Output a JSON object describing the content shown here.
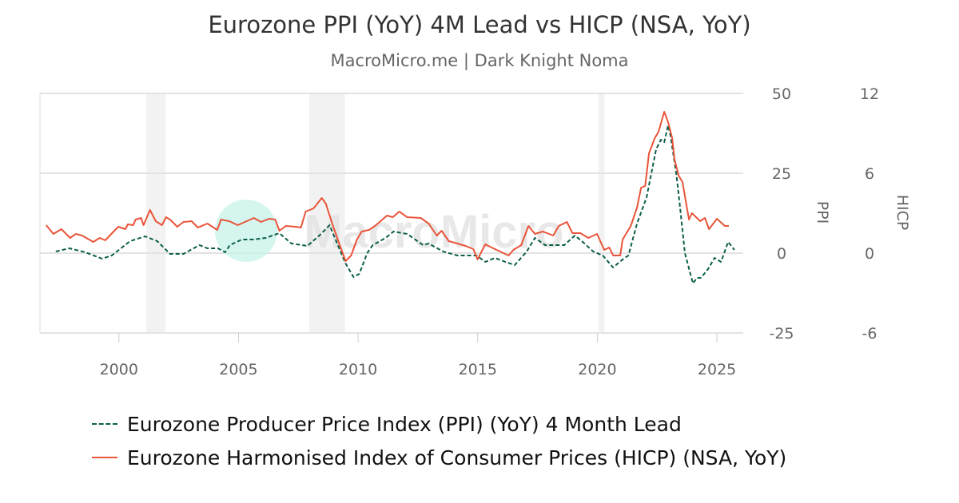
{
  "chart_data": {
    "type": "line",
    "title": "Eurozone PPI (YoY) 4M Lead vs HICP (NSA, YoY)",
    "subtitle": "MacroMicro.me | Dark Knight Noma",
    "watermark": "MacroMicro",
    "x_ticks": [
      "2000",
      "2005",
      "2010",
      "2015",
      "2020",
      "2025"
    ],
    "xlim": [
      1996.7,
      2026.1
    ],
    "y_left": {
      "label": "PPI",
      "ticks": [
        "50",
        "25",
        "0",
        "-25"
      ],
      "range": [
        -25,
        50
      ]
    },
    "y_right": {
      "label": "HICP",
      "ticks": [
        "12",
        "6",
        "0",
        "-6"
      ],
      "range": [
        -6,
        12
      ]
    },
    "grid": true,
    "legend_position": "bottom",
    "shaded_periods": [
      [
        2001.15,
        2001.95
      ],
      [
        2007.95,
        2009.45
      ],
      [
        2020.05,
        2020.3
      ]
    ],
    "series": [
      {
        "name": "Eurozone Producer Price Index (PPI) (YoY) 4 Month Lead",
        "axis": "left",
        "color": "#0b5e4a",
        "style": "dashed",
        "points": [
          [
            1997.36,
            0.5
          ],
          [
            1997.93,
            1.5
          ],
          [
            1998.6,
            0.25
          ],
          [
            1999.3,
            -1.75
          ],
          [
            1999.7,
            -0.75
          ],
          [
            2000.47,
            3.75
          ],
          [
            2001.1,
            5.25
          ],
          [
            2001.6,
            3.75
          ],
          [
            2002.14,
            -0.25
          ],
          [
            2002.7,
            -0.25
          ],
          [
            2003.37,
            2.5
          ],
          [
            2003.7,
            1.5
          ],
          [
            2004.14,
            1.5
          ],
          [
            2004.44,
            0.25
          ],
          [
            2004.64,
            2.5
          ],
          [
            2005.14,
            4.25
          ],
          [
            2005.61,
            4.25
          ],
          [
            2006.14,
            4.75
          ],
          [
            2006.71,
            6.25
          ],
          [
            2007.21,
            3.0
          ],
          [
            2007.88,
            2.25
          ],
          [
            2008.38,
            5.5
          ],
          [
            2008.81,
            8.75
          ],
          [
            2009.15,
            2.5
          ],
          [
            2009.48,
            -3.25
          ],
          [
            2009.81,
            -7.5
          ],
          [
            2010.05,
            -6.5
          ],
          [
            2010.38,
            0
          ],
          [
            2010.61,
            2.5
          ],
          [
            2011.15,
            4.75
          ],
          [
            2011.48,
            6.75
          ],
          [
            2012.05,
            6.0
          ],
          [
            2012.72,
            2.5
          ],
          [
            2012.95,
            3.0
          ],
          [
            2013.55,
            0.5
          ],
          [
            2014.15,
            -0.75
          ],
          [
            2014.62,
            -0.75
          ],
          [
            2014.95,
            -0.75
          ],
          [
            2015.32,
            -2.75
          ],
          [
            2015.72,
            -1.5
          ],
          [
            2016.15,
            -2.75
          ],
          [
            2016.55,
            -3.75
          ],
          [
            2017.05,
            0.5
          ],
          [
            2017.39,
            4.75
          ],
          [
            2017.82,
            2.5
          ],
          [
            2018.29,
            2.5
          ],
          [
            2018.62,
            2.5
          ],
          [
            2019.06,
            5.5
          ],
          [
            2019.39,
            3.5
          ],
          [
            2019.83,
            0.5
          ],
          [
            2020.23,
            -0.75
          ],
          [
            2020.66,
            -4.5
          ],
          [
            2021.06,
            -2.0
          ],
          [
            2021.3,
            -0.75
          ],
          [
            2021.66,
            9.25
          ],
          [
            2022.06,
            17.5
          ],
          [
            2022.46,
            32.5
          ],
          [
            2022.66,
            35.5
          ],
          [
            2022.8,
            34.75
          ],
          [
            2022.96,
            40
          ],
          [
            2023.06,
            36.75
          ],
          [
            2023.3,
            25
          ],
          [
            2023.46,
            14.25
          ],
          [
            2023.66,
            0
          ],
          [
            2024.0,
            -9.5
          ],
          [
            2024.17,
            -7.75
          ],
          [
            2024.33,
            -7.75
          ],
          [
            2024.63,
            -5
          ],
          [
            2024.9,
            -1.5
          ],
          [
            2025.17,
            -2.75
          ],
          [
            2025.47,
            3.5
          ],
          [
            2025.73,
            1.0
          ]
        ]
      },
      {
        "name": "Eurozone Harmonised Index of Consumer Prices (HICP) (NSA, YoY)",
        "axis": "right",
        "color": "#e9553a",
        "style": "solid",
        "points": [
          [
            1996.96,
            2.1
          ],
          [
            1997.26,
            1.44
          ],
          [
            1997.6,
            1.8
          ],
          [
            1997.96,
            1.14
          ],
          [
            1998.2,
            1.44
          ],
          [
            1998.46,
            1.32
          ],
          [
            1998.93,
            0.84
          ],
          [
            1999.2,
            1.14
          ],
          [
            1999.43,
            0.96
          ],
          [
            1999.97,
            1.98
          ],
          [
            2000.27,
            1.8
          ],
          [
            2000.37,
            2.16
          ],
          [
            2000.6,
            2.1
          ],
          [
            2000.7,
            2.52
          ],
          [
            2000.93,
            2.64
          ],
          [
            2001.03,
            2.1
          ],
          [
            2001.3,
            3.24
          ],
          [
            2001.54,
            2.4
          ],
          [
            2001.8,
            2.1
          ],
          [
            2001.97,
            2.7
          ],
          [
            2002.14,
            2.52
          ],
          [
            2002.44,
            1.98
          ],
          [
            2002.7,
            2.34
          ],
          [
            2003.04,
            2.4
          ],
          [
            2003.3,
            1.92
          ],
          [
            2003.7,
            2.22
          ],
          [
            2004.11,
            1.74
          ],
          [
            2004.27,
            2.52
          ],
          [
            2004.61,
            2.4
          ],
          [
            2004.97,
            2.1
          ],
          [
            2005.27,
            2.34
          ],
          [
            2005.64,
            2.64
          ],
          [
            2005.94,
            2.34
          ],
          [
            2006.28,
            2.58
          ],
          [
            2006.54,
            2.52
          ],
          [
            2006.71,
            1.68
          ],
          [
            2006.98,
            2.04
          ],
          [
            2007.38,
            1.98
          ],
          [
            2007.61,
            1.92
          ],
          [
            2007.81,
            3.12
          ],
          [
            2008.14,
            3.36
          ],
          [
            2008.48,
            4.14
          ],
          [
            2008.65,
            3.72
          ],
          [
            2008.95,
            2.04
          ],
          [
            2009.21,
            0.72
          ],
          [
            2009.48,
            -0.6
          ],
          [
            2009.71,
            -0.18
          ],
          [
            2009.95,
            1.02
          ],
          [
            2010.15,
            1.62
          ],
          [
            2010.45,
            1.74
          ],
          [
            2010.71,
            2.04
          ],
          [
            2011.21,
            2.82
          ],
          [
            2011.45,
            2.7
          ],
          [
            2011.72,
            3.12
          ],
          [
            2012.05,
            2.7
          ],
          [
            2012.62,
            2.64
          ],
          [
            2012.95,
            2.22
          ],
          [
            2013.29,
            1.32
          ],
          [
            2013.49,
            1.68
          ],
          [
            2013.79,
            0.9
          ],
          [
            2014.15,
            0.72
          ],
          [
            2014.49,
            0.54
          ],
          [
            2014.82,
            0.3
          ],
          [
            2014.99,
            -0.48
          ],
          [
            2015.32,
            0.66
          ],
          [
            2015.72,
            0.3
          ],
          [
            2016.29,
            -0.18
          ],
          [
            2016.49,
            0.24
          ],
          [
            2016.82,
            0.6
          ],
          [
            2017.12,
            2.04
          ],
          [
            2017.39,
            1.44
          ],
          [
            2017.72,
            1.62
          ],
          [
            2018.16,
            1.32
          ],
          [
            2018.39,
            2.04
          ],
          [
            2018.73,
            2.34
          ],
          [
            2018.96,
            1.5
          ],
          [
            2019.29,
            1.5
          ],
          [
            2019.63,
            1.14
          ],
          [
            2019.99,
            1.44
          ],
          [
            2020.29,
            0.24
          ],
          [
            2020.5,
            0.42
          ],
          [
            2020.66,
            -0.18
          ],
          [
            2020.96,
            -0.18
          ],
          [
            2021.06,
            1.02
          ],
          [
            2021.4,
            2.04
          ],
          [
            2021.66,
            3.42
          ],
          [
            2021.83,
            4.92
          ],
          [
            2022.0,
            5.04
          ],
          [
            2022.16,
            7.5
          ],
          [
            2022.4,
            8.64
          ],
          [
            2022.56,
            9.12
          ],
          [
            2022.8,
            10.62
          ],
          [
            2022.96,
            9.84
          ],
          [
            2023.13,
            8.64
          ],
          [
            2023.23,
            7.02
          ],
          [
            2023.4,
            5.82
          ],
          [
            2023.56,
            5.34
          ],
          [
            2023.83,
            2.52
          ],
          [
            2023.96,
            3.0
          ],
          [
            2024.3,
            2.4
          ],
          [
            2024.5,
            2.64
          ],
          [
            2024.67,
            1.8
          ],
          [
            2025.0,
            2.58
          ],
          [
            2025.33,
            2.04
          ],
          [
            2025.5,
            2.04
          ]
        ]
      }
    ]
  }
}
